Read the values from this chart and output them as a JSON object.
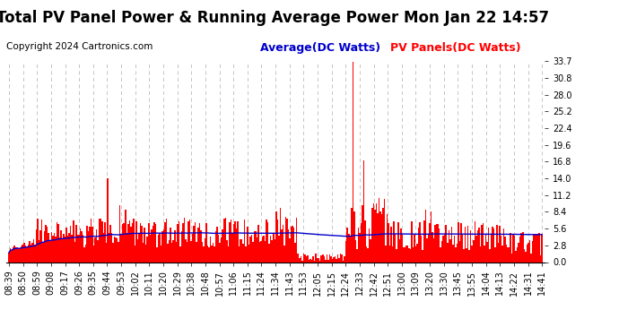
{
  "title": "Total PV Panel Power & Running Average Power Mon Jan 22 14:57",
  "copyright": "Copyright 2024 Cartronics.com",
  "legend_avg": "Average(DC Watts)",
  "legend_pv": "PV Panels(DC Watts)",
  "ylim": [
    0.0,
    33.7
  ],
  "yticks": [
    0.0,
    2.8,
    5.6,
    8.4,
    11.2,
    14.0,
    16.8,
    19.6,
    22.4,
    25.2,
    28.0,
    30.8,
    33.7
  ],
  "bar_color": "#ff0000",
  "avg_line_color": "#0000cc",
  "grid_color": "#bbbbbb",
  "bg_color": "#ffffff",
  "title_fontsize": 12,
  "copyright_fontsize": 7.5,
  "legend_fontsize": 9,
  "tick_fontsize": 7,
  "x_labels": [
    "08:39",
    "08:50",
    "08:59",
    "09:08",
    "09:17",
    "09:26",
    "09:35",
    "09:44",
    "09:53",
    "10:02",
    "10:11",
    "10:20",
    "10:29",
    "10:38",
    "10:48",
    "10:57",
    "11:06",
    "11:15",
    "11:24",
    "11:34",
    "11:43",
    "11:53",
    "12:05",
    "12:15",
    "12:24",
    "12:33",
    "12:42",
    "12:51",
    "13:00",
    "13:09",
    "13:20",
    "13:30",
    "13:45",
    "13:55",
    "14:04",
    "14:13",
    "14:22",
    "14:31",
    "14:41"
  ],
  "num_bars": 390
}
